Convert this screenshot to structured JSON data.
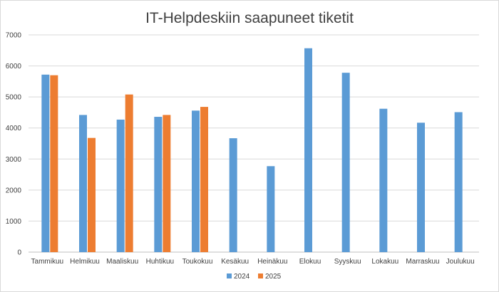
{
  "chart_data": {
    "type": "bar",
    "title": "IT-Helpdeskiin saapuneet tiketit",
    "xlabel": "",
    "ylabel": "",
    "categories": [
      "Tammikuu",
      "Helmikuu",
      "Maaliskuu",
      "Huhtikuu",
      "Toukokuu",
      "Kesäkuu",
      "Heinäkuu",
      "Elokuu",
      "Syyskuu",
      "Lokakuu",
      "Marraskuu",
      "Joulukuu"
    ],
    "series": [
      {
        "name": "2024",
        "color": "#5b9bd5",
        "values": [
          5720,
          4420,
          4270,
          4360,
          4560,
          3670,
          2770,
          6570,
          5780,
          4620,
          4170,
          4510
        ]
      },
      {
        "name": "2025",
        "color": "#ed7d31",
        "values": [
          5700,
          3680,
          5080,
          4420,
          4680,
          null,
          null,
          null,
          null,
          null,
          null,
          null
        ]
      }
    ],
    "ylim": [
      0,
      7000
    ],
    "yticks": [
      0,
      1000,
      2000,
      3000,
      4000,
      5000,
      6000,
      7000
    ],
    "grid": true,
    "legend_position": "bottom"
  }
}
